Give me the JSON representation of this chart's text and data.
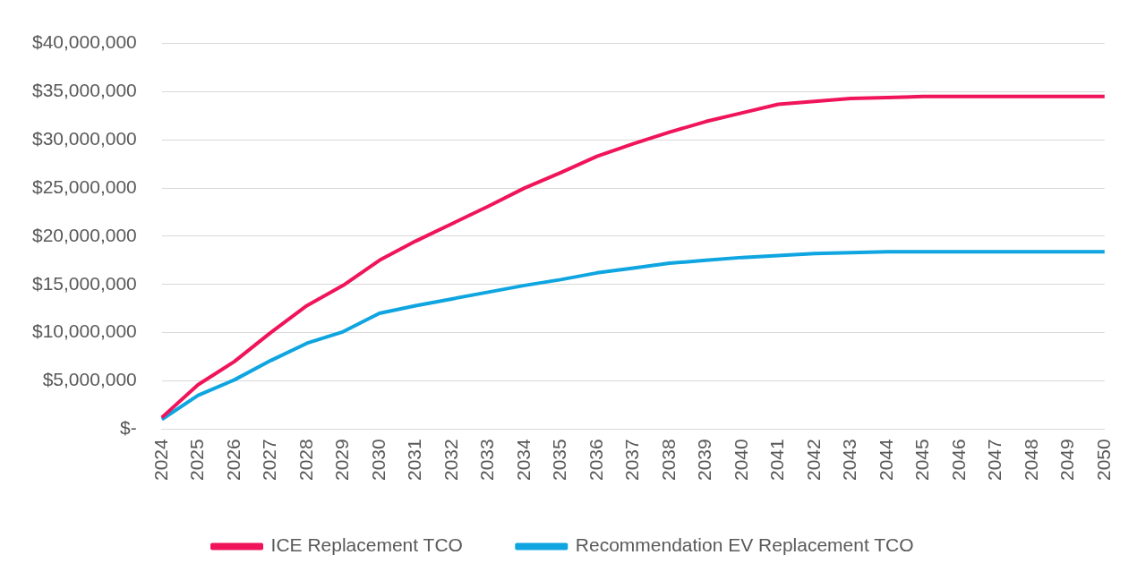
{
  "chart_data": {
    "type": "line",
    "categories": [
      "2024",
      "2025",
      "2026",
      "2027",
      "2028",
      "2029",
      "2030",
      "2031",
      "2032",
      "2033",
      "2034",
      "2035",
      "2036",
      "2037",
      "2038",
      "2039",
      "2040",
      "2041",
      "2042",
      "2043",
      "2044",
      "2045",
      "2046",
      "2047",
      "2048",
      "2049",
      "2050"
    ],
    "series": [
      {
        "name": "ICE Replacement TCO",
        "color": "#f0145a",
        "values": [
          1200000,
          4600000,
          7000000,
          10000000,
          12800000,
          14900000,
          17500000,
          19500000,
          21300000,
          23100000,
          25000000,
          26600000,
          28300000,
          29600000,
          30800000,
          31900000,
          32800000,
          33700000,
          34000000,
          34300000,
          34400000,
          34500000,
          34500000,
          34500000,
          34500000,
          34500000,
          34500000
        ]
      },
      {
        "name": "Recommendation EV Replacement TCO",
        "color": "#0ea5e0",
        "values": [
          1000000,
          3500000,
          5100000,
          7100000,
          8900000,
          10100000,
          12000000,
          12800000,
          13500000,
          14200000,
          14900000,
          15500000,
          16200000,
          16700000,
          17200000,
          17500000,
          17800000,
          18000000,
          18200000,
          18300000,
          18400000,
          18400000,
          18400000,
          18400000,
          18400000,
          18400000,
          18400000
        ]
      }
    ],
    "ylim": [
      0,
      40000000
    ],
    "yticks": [
      {
        "value": 0,
        "label": "$-"
      },
      {
        "value": 5000000,
        "label": "$5,000,000"
      },
      {
        "value": 10000000,
        "label": "$10,000,000"
      },
      {
        "value": 15000000,
        "label": "$15,000,000"
      },
      {
        "value": 20000000,
        "label": "$20,000,000"
      },
      {
        "value": 25000000,
        "label": "$25,000,000"
      },
      {
        "value": 30000000,
        "label": "$30,000,000"
      },
      {
        "value": 35000000,
        "label": "$35,000,000"
      },
      {
        "value": 40000000,
        "label": "$40,000,000"
      }
    ],
    "grid": "y",
    "legend": "bottom",
    "marker": "none",
    "line_style": "solid"
  }
}
